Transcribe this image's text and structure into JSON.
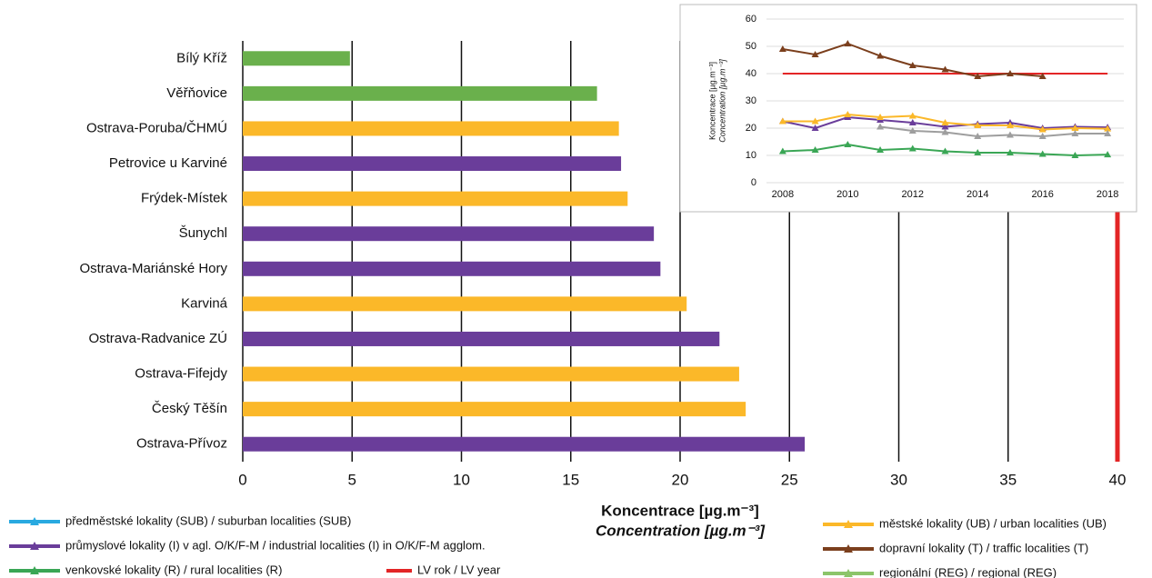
{
  "chart_data": [
    {
      "type": "bar",
      "orientation": "horizontal",
      "categories": [
        "Bílý Kříž",
        "Věřňovice",
        "Ostrava-Poruba/ČHMÚ",
        "Petrovice u Karviné",
        "Frýdek-Místek",
        "Šunychl",
        "Ostrava-Mariánské Hory",
        "Karviná",
        "Ostrava-Radvanice ZÚ",
        "Ostrava-Fifejdy",
        "Český Těšín",
        "Ostrava-Přívoz"
      ],
      "values": [
        4.9,
        16.2,
        17.2,
        17.3,
        17.6,
        18.8,
        19.1,
        20.3,
        21.8,
        22.7,
        23.0,
        25.7
      ],
      "colors": [
        "#6ab04c",
        "#6ab04c",
        "#fbb829",
        "#6a3d9a",
        "#fbb829",
        "#6a3d9a",
        "#6a3d9a",
        "#fbb829",
        "#6a3d9a",
        "#fbb829",
        "#fbb829",
        "#6a3d9a"
      ],
      "xlim": [
        0,
        40
      ],
      "xticks": [
        0,
        5,
        10,
        15,
        20,
        25,
        30,
        35,
        40
      ],
      "grid": true,
      "limit": 40,
      "limit_color": "#e32526",
      "x_label": "Koncentrace [µg.m⁻³]",
      "x_label_en": "Concentration [µg.m⁻³]"
    },
    {
      "type": "line",
      "x": [
        2008,
        2009,
        2010,
        2011,
        2012,
        2013,
        2014,
        2015,
        2016,
        2017,
        2018
      ],
      "xlim": [
        2007.5,
        2018.5
      ],
      "xticks": [
        2008,
        2010,
        2012,
        2014,
        2016,
        2018
      ],
      "ylim": [
        0,
        60
      ],
      "yticks": [
        0,
        10,
        20,
        30,
        40,
        50,
        60
      ],
      "grid": true,
      "y_label": "Koncentrace [µg.m⁻³]",
      "y_label_en": "Concentration [µg.m⁻³]",
      "series": [
        {
          "name": "předměstské lokality (SUB) / suburban localities (SUB)",
          "color": "#29a9e0",
          "values": [
            null,
            null,
            null,
            null,
            null,
            null,
            null,
            null,
            null,
            null,
            null
          ]
        },
        {
          "name": "průmyslové lokality (I) v agl. O/K/F-M / industrial localities (I) in O/K/F-M agglom.",
          "color": "#6a3d9a",
          "values": [
            22.5,
            20,
            24,
            23,
            22,
            20.5,
            21.5,
            22,
            20,
            20.5,
            20.3
          ]
        },
        {
          "name": "venkovské lokality (R) / rural localities (R)",
          "color": "#3aa655",
          "values": [
            11.5,
            12,
            14,
            12,
            12.5,
            11.5,
            11,
            11,
            10.5,
            10,
            10.3
          ]
        },
        {
          "name": "LV rok / LV year",
          "color": "#e32526",
          "marker": false,
          "values": [
            40,
            40,
            40,
            40,
            40,
            40,
            40,
            40,
            40,
            40,
            40
          ]
        },
        {
          "name": "městské lokality (UB) / urban localities (UB)",
          "color": "#fbb829",
          "values": [
            22.5,
            22.5,
            25,
            24,
            24.5,
            22,
            21,
            21,
            19.5,
            20,
            19.8
          ]
        },
        {
          "name": "dopravní lokality (T) / traffic localities (T)",
          "color": "#7b3f1d",
          "values": [
            49,
            47,
            51,
            46.5,
            43,
            41.5,
            39,
            40,
            39,
            null,
            null
          ]
        },
        {
          "name": "regionální (REG) / regional (REG)",
          "color": "#8cc56a",
          "values": [
            null,
            null,
            null,
            null,
            null,
            null,
            null,
            null,
            null,
            null,
            null
          ]
        },
        {
          "name": null,
          "color": "#9e9e9e",
          "values": [
            null,
            null,
            null,
            20.5,
            19,
            18.5,
            17,
            17.5,
            17,
            18,
            18
          ]
        }
      ]
    }
  ]
}
